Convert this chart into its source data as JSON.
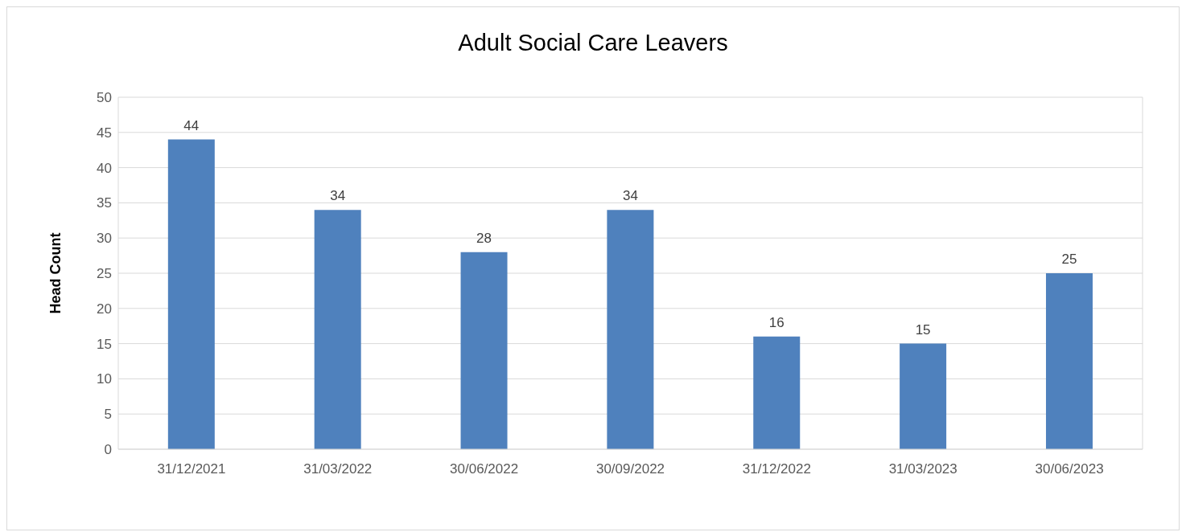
{
  "chart_data": {
    "type": "bar",
    "title": "Adult Social Care Leavers",
    "ylabel": "Head Count",
    "categories": [
      "31/12/2021",
      "31/03/2022",
      "30/06/2022",
      "30/09/2022",
      "31/12/2022",
      "31/03/2023",
      "30/06/2023"
    ],
    "values": [
      44,
      34,
      28,
      34,
      16,
      15,
      25
    ],
    "color": "#4f81bd",
    "ylim": [
      0,
      50
    ],
    "yticks": [
      0,
      5,
      10,
      15,
      20,
      25,
      30,
      35,
      40,
      45,
      50
    ],
    "grid": "y",
    "data_labels": true,
    "legend": false
  }
}
